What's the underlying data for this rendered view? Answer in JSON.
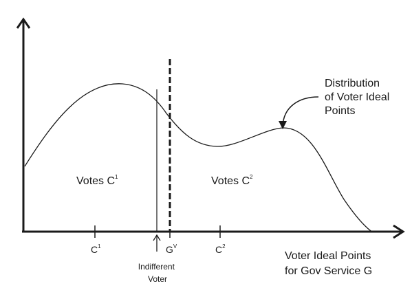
{
  "diagram": {
    "colors": {
      "ink": "#1a1a1a",
      "background": "#ffffff"
    },
    "axis": {
      "label_line1": "Voter Ideal Points",
      "label_line2": "for Gov Service G"
    },
    "ticks": {
      "c1": {
        "base": "C",
        "sup": "1"
      },
      "gv": {
        "base": "G",
        "sup": "V"
      },
      "c2": {
        "base": "C",
        "sup": "2"
      }
    },
    "regions": {
      "left": {
        "base": "Votes C",
        "sup": "1"
      },
      "right": {
        "base": "Votes C",
        "sup": "2"
      }
    },
    "indifferent_voter": {
      "line1": "Indifferent",
      "line2": "Voter"
    },
    "distribution_label": {
      "line1": "Distribution",
      "line2": "of Voter Ideal",
      "line3": "Points"
    }
  }
}
